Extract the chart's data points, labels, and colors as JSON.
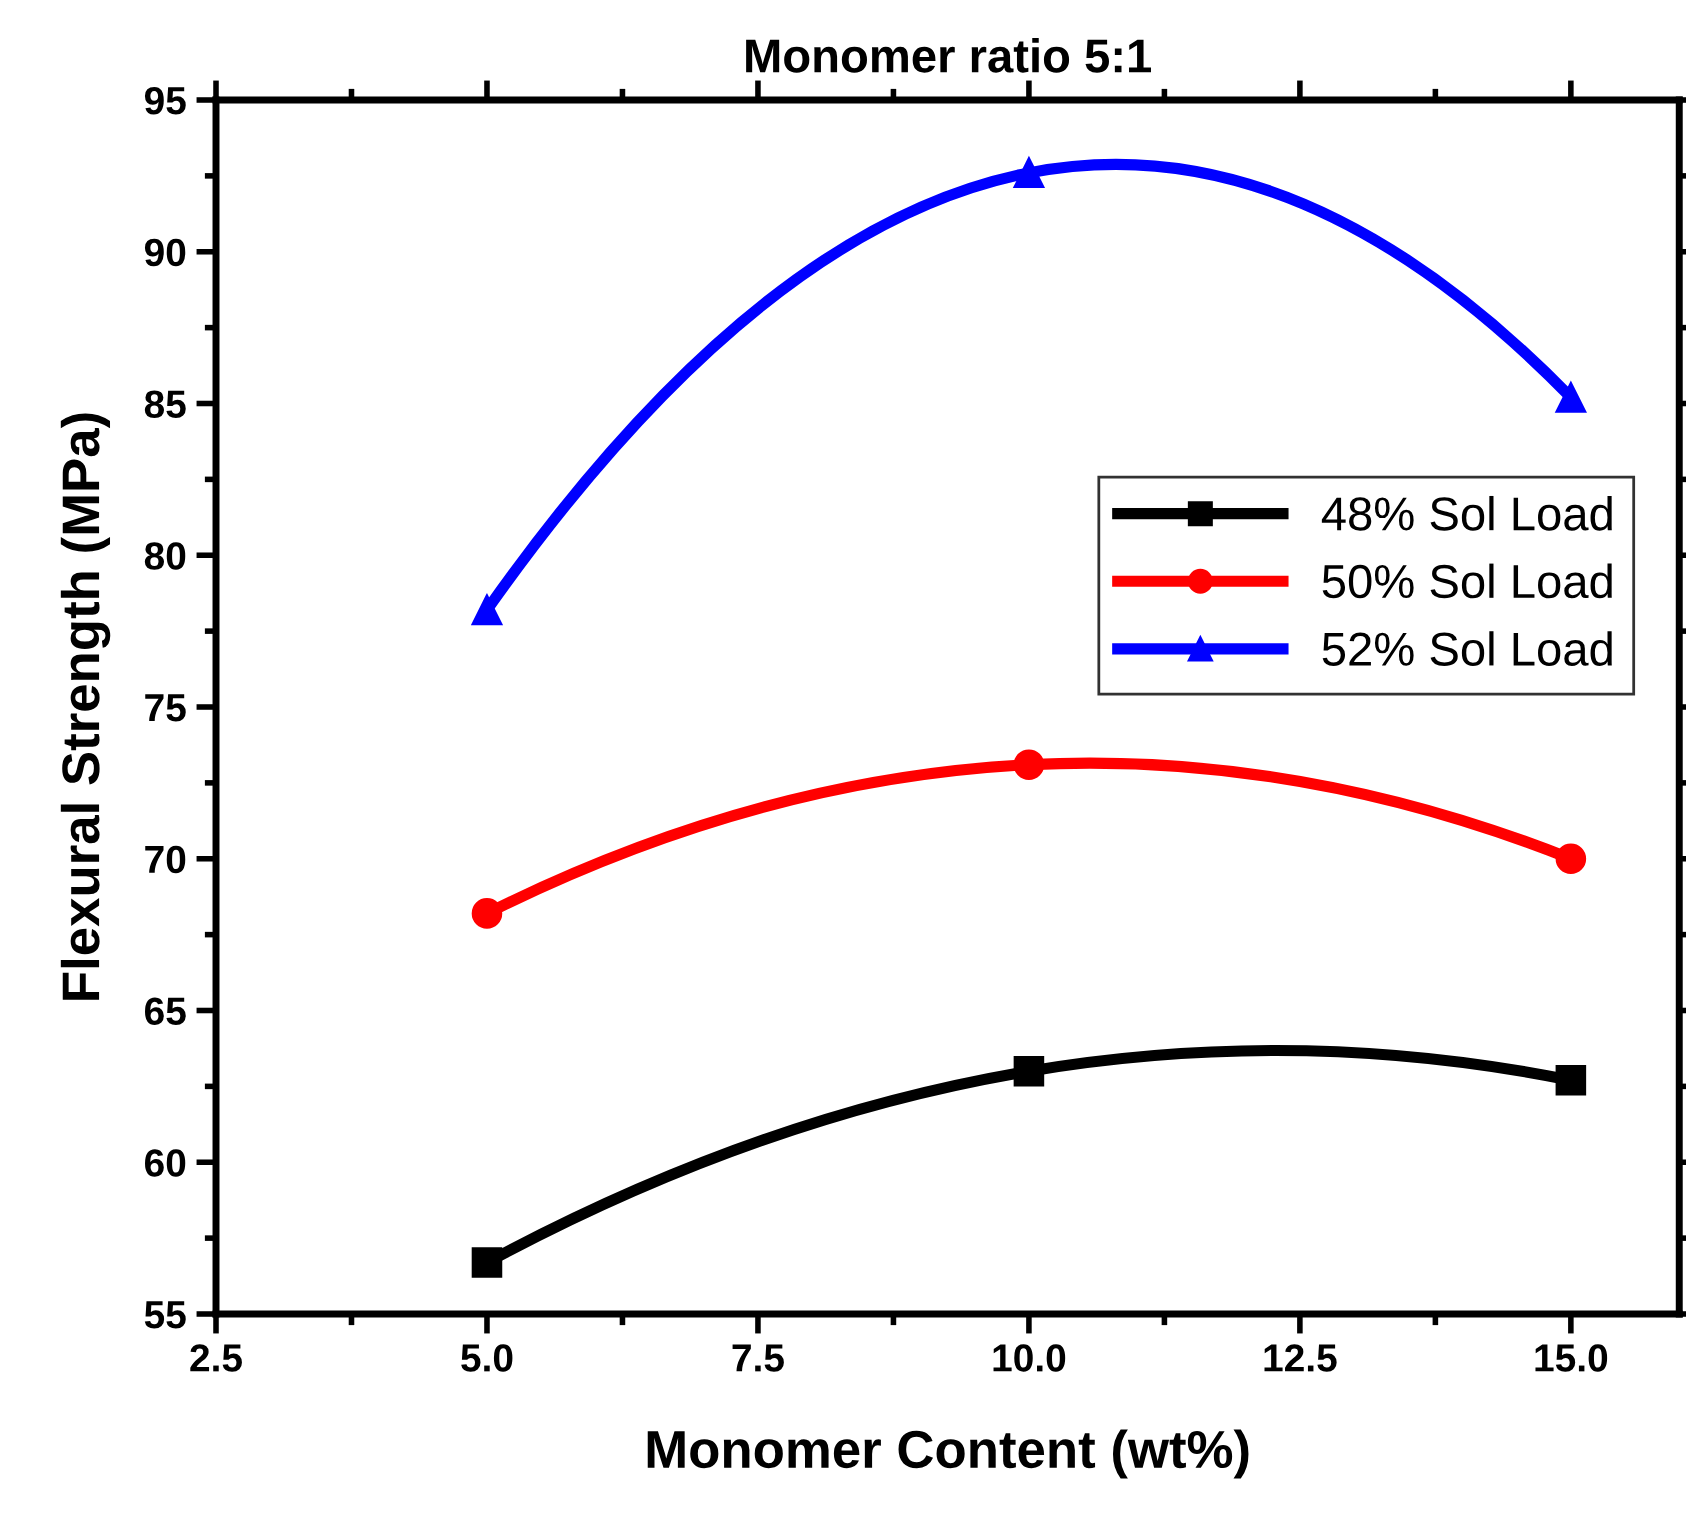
{
  "chart_data": {
    "type": "line",
    "title": "Monomer ratio 5:1",
    "xlabel": "Monomer Content (wt%)",
    "ylabel": "Flexural Strength (MPa)",
    "x": [
      5,
      10,
      15
    ],
    "series": [
      {
        "name": "48% Sol Load",
        "color": "#000000",
        "marker": "square",
        "values": [
          56.7,
          63.0,
          62.7
        ]
      },
      {
        "name": "50% Sol Load",
        "color": "#ff0000",
        "marker": "circle",
        "values": [
          68.2,
          73.1,
          70.0
        ]
      },
      {
        "name": "52% Sol Load",
        "color": "#0000ff",
        "marker": "triangle",
        "values": [
          78.2,
          92.6,
          85.2
        ]
      }
    ],
    "xlim": [
      2.5,
      16
    ],
    "xticks": [
      {
        "value": 2.5,
        "label": "2.5"
      },
      {
        "value": 5,
        "label": "5.0"
      },
      {
        "value": 7.5,
        "label": "7.5"
      },
      {
        "value": 10,
        "label": "10.0"
      },
      {
        "value": 12.5,
        "label": "12.5"
      },
      {
        "value": 15,
        "label": "15.0"
      }
    ],
    "ylim": [
      55,
      95
    ],
    "yticks": [
      55,
      60,
      65,
      70,
      75,
      80,
      85,
      90,
      95
    ],
    "grid": false,
    "legend": "right",
    "line_style": "solid"
  }
}
